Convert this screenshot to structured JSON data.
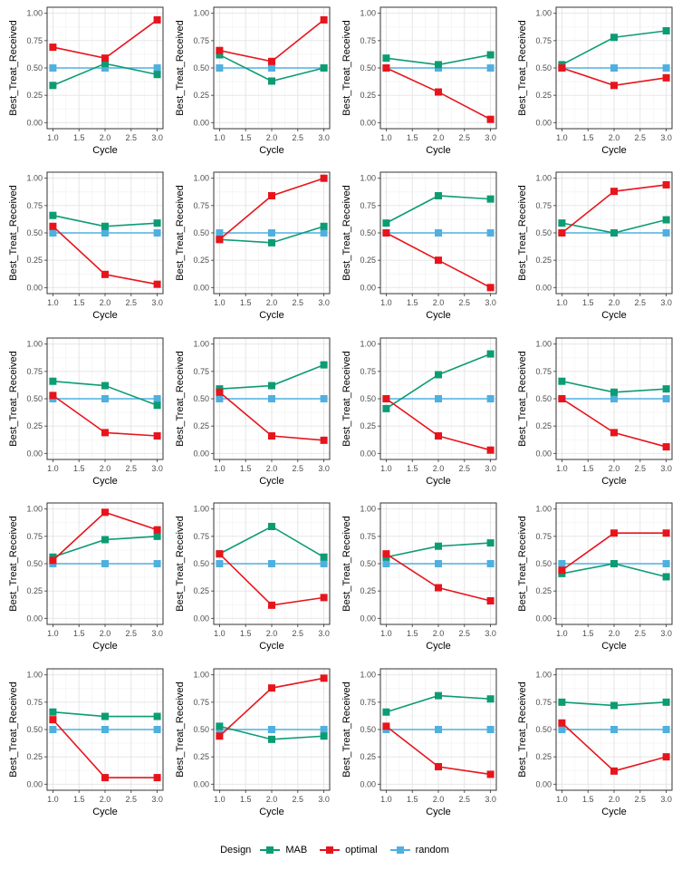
{
  "legend": {
    "title": "Design",
    "entries": [
      {
        "name": "MAB",
        "color": "#0C9C74"
      },
      {
        "name": "optimal",
        "color": "#E8141C"
      },
      {
        "name": "random",
        "color": "#4FB0E0"
      }
    ]
  },
  "chart_data": {
    "type": "line",
    "layout": "facet grid 5 rows x 4 columns",
    "xlabel": "Cycle",
    "ylabel": "Best_Treat_Received",
    "xlim": [
      1.0,
      3.0
    ],
    "ylim": [
      0.0,
      1.0
    ],
    "x_ticks": [
      "1.0",
      "1.5",
      "2.0",
      "2.5",
      "3.0"
    ],
    "y_ticks": [
      "0.00",
      "0.25",
      "0.50",
      "0.75",
      "1.00"
    ],
    "x": [
      1,
      2,
      3
    ],
    "grid": true,
    "legend_position": "bottom",
    "series_names": [
      "MAB",
      "optimal",
      "random"
    ],
    "panels": [
      {
        "MAB": [
          0.34,
          0.54,
          0.44
        ],
        "optimal": [
          0.69,
          0.59,
          0.94
        ],
        "random": [
          0.5,
          0.5,
          0.5
        ]
      },
      {
        "MAB": [
          0.62,
          0.38,
          0.5
        ],
        "optimal": [
          0.66,
          0.56,
          0.94
        ],
        "random": [
          0.5,
          0.5,
          0.5
        ]
      },
      {
        "MAB": [
          0.59,
          0.53,
          0.62
        ],
        "optimal": [
          0.5,
          0.28,
          0.03
        ],
        "random": [
          0.5,
          0.5,
          0.5
        ]
      },
      {
        "MAB": [
          0.53,
          0.78,
          0.84
        ],
        "optimal": [
          0.5,
          0.34,
          0.41
        ],
        "random": [
          0.5,
          0.5,
          0.5
        ]
      },
      {
        "MAB": [
          0.66,
          0.56,
          0.59
        ],
        "optimal": [
          0.56,
          0.12,
          0.03
        ],
        "random": [
          0.5,
          0.5,
          0.5
        ]
      },
      {
        "MAB": [
          0.44,
          0.41,
          0.56
        ],
        "optimal": [
          0.44,
          0.84,
          1.0
        ],
        "random": [
          0.5,
          0.5,
          0.5
        ]
      },
      {
        "MAB": [
          0.59,
          0.84,
          0.81
        ],
        "optimal": [
          0.5,
          0.25,
          0.0
        ],
        "random": [
          0.5,
          0.5,
          0.5
        ]
      },
      {
        "MAB": [
          0.59,
          0.5,
          0.62
        ],
        "optimal": [
          0.5,
          0.88,
          0.94
        ],
        "random": [
          0.5,
          0.5,
          0.5
        ]
      },
      {
        "MAB": [
          0.66,
          0.62,
          0.44
        ],
        "optimal": [
          0.53,
          0.19,
          0.16
        ],
        "random": [
          0.5,
          0.5,
          0.5
        ]
      },
      {
        "MAB": [
          0.59,
          0.62,
          0.81
        ],
        "optimal": [
          0.56,
          0.16,
          0.12
        ],
        "random": [
          0.5,
          0.5,
          0.5
        ]
      },
      {
        "MAB": [
          0.41,
          0.72,
          0.91
        ],
        "optimal": [
          0.5,
          0.16,
          0.03
        ],
        "random": [
          0.5,
          0.5,
          0.5
        ]
      },
      {
        "MAB": [
          0.66,
          0.56,
          0.59
        ],
        "optimal": [
          0.5,
          0.19,
          0.06
        ],
        "random": [
          0.5,
          0.5,
          0.5
        ]
      },
      {
        "MAB": [
          0.56,
          0.72,
          0.75
        ],
        "optimal": [
          0.53,
          0.97,
          0.81
        ],
        "random": [
          0.5,
          0.5,
          0.5
        ]
      },
      {
        "MAB": [
          0.59,
          0.84,
          0.56
        ],
        "optimal": [
          0.59,
          0.12,
          0.19
        ],
        "random": [
          0.5,
          0.5,
          0.5
        ]
      },
      {
        "MAB": [
          0.56,
          0.66,
          0.69
        ],
        "optimal": [
          0.59,
          0.28,
          0.16
        ],
        "random": [
          0.5,
          0.5,
          0.5
        ]
      },
      {
        "MAB": [
          0.41,
          0.5,
          0.38
        ],
        "optimal": [
          0.44,
          0.78,
          0.78
        ],
        "random": [
          0.5,
          0.5,
          0.5
        ]
      },
      {
        "MAB": [
          0.66,
          0.62,
          0.62
        ],
        "optimal": [
          0.59,
          0.06,
          0.06
        ],
        "random": [
          0.5,
          0.5,
          0.5
        ]
      },
      {
        "MAB": [
          0.53,
          0.41,
          0.44
        ],
        "optimal": [
          0.44,
          0.88,
          0.97
        ],
        "random": [
          0.5,
          0.5,
          0.5
        ]
      },
      {
        "MAB": [
          0.66,
          0.81,
          0.78
        ],
        "optimal": [
          0.53,
          0.16,
          0.09
        ],
        "random": [
          0.5,
          0.5,
          0.5
        ]
      },
      {
        "MAB": [
          0.75,
          0.72,
          0.75
        ],
        "optimal": [
          0.56,
          0.12,
          0.25
        ],
        "random": [
          0.5,
          0.5,
          0.5
        ]
      }
    ]
  }
}
